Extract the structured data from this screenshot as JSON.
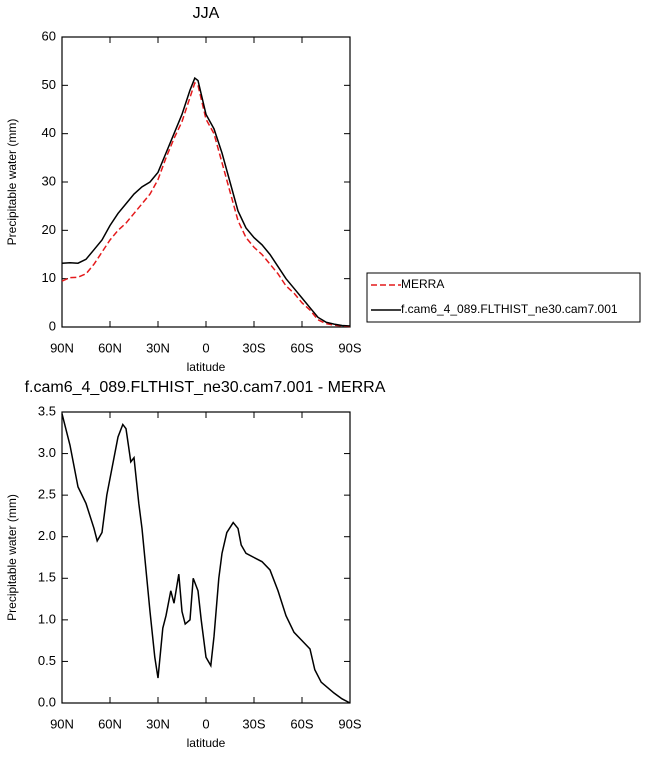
{
  "chart_data": [
    {
      "type": "line",
      "title": "JJA",
      "xlabel": "latitude",
      "ylabel": "Precipitable water (mm)",
      "x": [
        90,
        85,
        80,
        75,
        70,
        65,
        60,
        55,
        50,
        45,
        40,
        35,
        30,
        25,
        20,
        15,
        10,
        7,
        5,
        0,
        -5,
        -10,
        -15,
        -20,
        -25,
        -30,
        -35,
        -40,
        -45,
        -50,
        -55,
        -60,
        -65,
        -70,
        -75,
        -80,
        -85,
        -90
      ],
      "series": [
        {
          "name": "MERRA",
          "color": "#e41a1c",
          "dash": true,
          "values": [
            9.5,
            10.2,
            10.3,
            11,
            13,
            15.5,
            18,
            20,
            21.5,
            23.5,
            25.5,
            27.5,
            30.5,
            35,
            39,
            42.5,
            47.5,
            50.5,
            50,
            43,
            40,
            34,
            28,
            22,
            18.5,
            16.5,
            15,
            13,
            11,
            8.5,
            7,
            5,
            3.5,
            1.5,
            0.7,
            0.4,
            0.2,
            0.1
          ]
        },
        {
          "name": "f.cam6_4_089.FLTHIST_ne30.cam7.001",
          "color": "#000000",
          "dash": false,
          "values": [
            13.2,
            13.3,
            13.2,
            14,
            16,
            18,
            21,
            23.5,
            25.5,
            27.5,
            29,
            30,
            32,
            36,
            40,
            44,
            49,
            51.5,
            51,
            44,
            41,
            36,
            30,
            24,
            20.5,
            18.5,
            17,
            15,
            12.5,
            10,
            8,
            6,
            4,
            2,
            1,
            0.6,
            0.3,
            0.2
          ]
        }
      ],
      "xlim": [
        90,
        -90
      ],
      "xticks": [
        {
          "value": 90,
          "label": "90N"
        },
        {
          "value": 60,
          "label": "60N"
        },
        {
          "value": 30,
          "label": "30N"
        },
        0,
        {
          "value": -30,
          "label": "30S"
        },
        {
          "value": -60,
          "label": "60S"
        },
        {
          "value": -90,
          "label": "90S"
        }
      ],
      "ylim": [
        0,
        60
      ],
      "yticks": [
        0,
        10,
        20,
        30,
        40,
        50,
        60
      ],
      "legend": "right"
    },
    {
      "type": "line",
      "title": "f.cam6_4_089.FLTHIST_ne30.cam7.001 - MERRA",
      "xlabel": "latitude",
      "ylabel": "Precipitable water (mm)",
      "x": [
        90,
        85,
        80,
        75,
        70,
        68,
        65,
        62,
        58,
        55,
        52,
        50,
        47,
        45,
        42,
        40,
        37,
        35,
        32,
        30,
        27,
        25,
        22,
        20,
        17,
        15,
        13,
        10,
        8,
        5,
        3,
        0,
        -3,
        -5,
        -8,
        -10,
        -13,
        -17,
        -20,
        -22,
        -25,
        -30,
        -35,
        -40,
        -45,
        -50,
        -55,
        -60,
        -65,
        -68,
        -72,
        -80,
        -85,
        -90
      ],
      "series": [
        {
          "name": "f.cam6_4_089.FLTHIST_ne30.cam7.001 - MERRA",
          "color": "#000000",
          "dash": false,
          "values": [
            3.48,
            3.1,
            2.6,
            2.4,
            2.1,
            1.95,
            2.05,
            2.5,
            2.9,
            3.2,
            3.35,
            3.3,
            2.9,
            2.95,
            2.4,
            2.1,
            1.5,
            1.1,
            0.55,
            0.3,
            0.9,
            1.05,
            1.35,
            1.2,
            1.55,
            1.1,
            0.95,
            1.0,
            1.5,
            1.35,
            1.0,
            0.55,
            0.45,
            0.8,
            1.5,
            1.8,
            2.05,
            2.17,
            2.1,
            1.9,
            1.8,
            1.75,
            1.7,
            1.6,
            1.35,
            1.05,
            0.85,
            0.75,
            0.65,
            0.4,
            0.25,
            0.12,
            0.05,
            0.0
          ]
        }
      ],
      "xlim": [
        90,
        -90
      ],
      "xticks": [
        {
          "value": 90,
          "label": "90N"
        },
        {
          "value": 60,
          "label": "60N"
        },
        {
          "value": 30,
          "label": "30N"
        },
        0,
        {
          "value": -30,
          "label": "30S"
        },
        {
          "value": -60,
          "label": "60S"
        },
        {
          "value": -90,
          "label": "90S"
        }
      ],
      "ylim": [
        0,
        3.5
      ],
      "yticks": [
        {
          "value": 0,
          "label": "0.0"
        },
        0.5,
        {
          "value": 1,
          "label": "1.0"
        },
        1.5,
        {
          "value": 2,
          "label": "2.0"
        },
        2.5,
        {
          "value": 3,
          "label": "3.0"
        },
        3.5
      ]
    }
  ]
}
